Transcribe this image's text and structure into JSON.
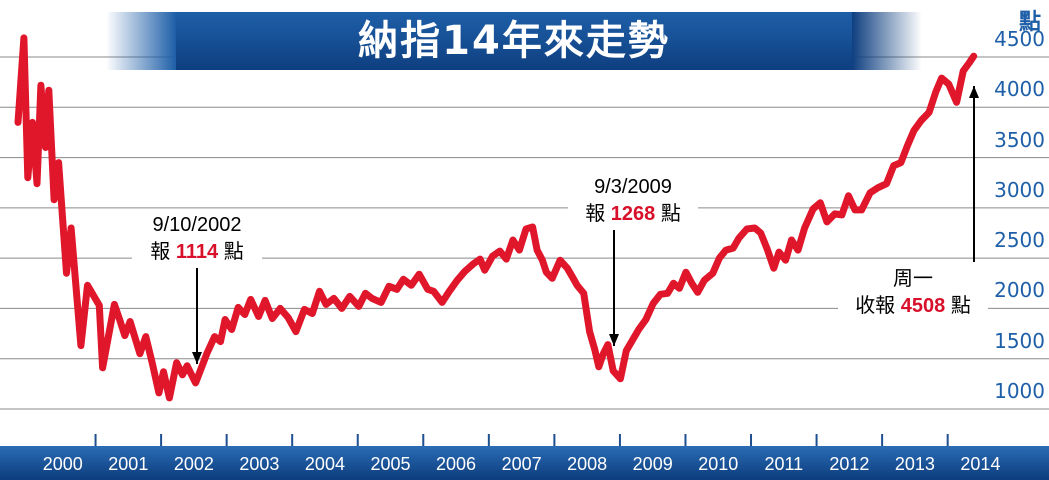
{
  "title": "納指14年來走勢",
  "chart_data": {
    "type": "line",
    "unit": "點",
    "ylim": [
      800,
      4700
    ],
    "y_ticks": [
      1000,
      1500,
      2000,
      2500,
      3000,
      3500,
      4000,
      4500
    ],
    "x_ticks": [
      "2000",
      "2001",
      "2002",
      "2003",
      "2004",
      "2005",
      "2006",
      "2007",
      "2008",
      "2009",
      "2010",
      "2011",
      "2012",
      "2013",
      "2014"
    ],
    "xlim": [
      2000.0,
      2014.6
    ],
    "grid": "horizontal",
    "color": "#e0162b",
    "series": [
      {
        "points": [
          [
            2000.0,
            3850
          ],
          [
            2000.09,
            4690
          ],
          [
            2000.15,
            3300
          ],
          [
            2000.22,
            3850
          ],
          [
            2000.29,
            3240
          ],
          [
            2000.35,
            4220
          ],
          [
            2000.42,
            3600
          ],
          [
            2000.47,
            4170
          ],
          [
            2000.55,
            3080
          ],
          [
            2000.62,
            3450
          ],
          [
            2000.74,
            2350
          ],
          [
            2000.81,
            2800
          ],
          [
            2000.96,
            1630
          ],
          [
            2001.06,
            2230
          ],
          [
            2001.24,
            2030
          ],
          [
            2001.29,
            1410
          ],
          [
            2001.47,
            2040
          ],
          [
            2001.55,
            1890
          ],
          [
            2001.63,
            1730
          ],
          [
            2001.71,
            1870
          ],
          [
            2001.86,
            1550
          ],
          [
            2001.95,
            1720
          ],
          [
            2002.05,
            1450
          ],
          [
            2002.15,
            1160
          ],
          [
            2002.22,
            1370
          ],
          [
            2002.31,
            1110
          ],
          [
            2002.42,
            1460
          ],
          [
            2002.51,
            1340
          ],
          [
            2002.58,
            1430
          ],
          [
            2002.71,
            1260
          ],
          [
            2002.88,
            1550
          ],
          [
            2003.0,
            1720
          ],
          [
            2003.09,
            1670
          ],
          [
            2003.16,
            1890
          ],
          [
            2003.26,
            1790
          ],
          [
            2003.36,
            2010
          ],
          [
            2003.46,
            1940
          ],
          [
            2003.55,
            2090
          ],
          [
            2003.67,
            1920
          ],
          [
            2003.77,
            2080
          ],
          [
            2003.88,
            1900
          ],
          [
            2004.0,
            2000
          ],
          [
            2004.12,
            1910
          ],
          [
            2004.24,
            1770
          ],
          [
            2004.37,
            1990
          ],
          [
            2004.49,
            1950
          ],
          [
            2004.6,
            2170
          ],
          [
            2004.7,
            2040
          ],
          [
            2004.82,
            2100
          ],
          [
            2004.94,
            2000
          ],
          [
            2005.06,
            2120
          ],
          [
            2005.2,
            2020
          ],
          [
            2005.3,
            2150
          ],
          [
            2005.4,
            2100
          ],
          [
            2005.54,
            2060
          ],
          [
            2005.66,
            2220
          ],
          [
            2005.78,
            2190
          ],
          [
            2005.88,
            2290
          ],
          [
            2006.0,
            2230
          ],
          [
            2006.12,
            2340
          ],
          [
            2006.25,
            2190
          ],
          [
            2006.34,
            2170
          ],
          [
            2006.47,
            2060
          ],
          [
            2006.58,
            2170
          ],
          [
            2006.7,
            2280
          ],
          [
            2006.82,
            2370
          ],
          [
            2006.94,
            2440
          ],
          [
            2007.05,
            2490
          ],
          [
            2007.12,
            2380
          ],
          [
            2007.24,
            2520
          ],
          [
            2007.35,
            2570
          ],
          [
            2007.45,
            2490
          ],
          [
            2007.55,
            2680
          ],
          [
            2007.65,
            2580
          ],
          [
            2007.75,
            2790
          ],
          [
            2007.85,
            2810
          ],
          [
            2007.92,
            2580
          ],
          [
            2008.0,
            2480
          ],
          [
            2008.06,
            2360
          ],
          [
            2008.15,
            2300
          ],
          [
            2008.27,
            2480
          ],
          [
            2008.38,
            2400
          ],
          [
            2008.47,
            2300
          ],
          [
            2008.53,
            2230
          ],
          [
            2008.63,
            2150
          ],
          [
            2008.72,
            1770
          ],
          [
            2008.8,
            1590
          ],
          [
            2008.86,
            1420
          ],
          [
            2008.93,
            1550
          ],
          [
            2009.0,
            1640
          ],
          [
            2009.08,
            1380
          ],
          [
            2009.19,
            1300
          ],
          [
            2009.28,
            1580
          ],
          [
            2009.37,
            1680
          ],
          [
            2009.47,
            1790
          ],
          [
            2009.58,
            1890
          ],
          [
            2009.69,
            2050
          ],
          [
            2009.8,
            2140
          ],
          [
            2009.91,
            2150
          ],
          [
            2010.0,
            2250
          ],
          [
            2010.09,
            2200
          ],
          [
            2010.19,
            2360
          ],
          [
            2010.28,
            2250
          ],
          [
            2010.37,
            2160
          ],
          [
            2010.47,
            2280
          ],
          [
            2010.6,
            2350
          ],
          [
            2010.7,
            2500
          ],
          [
            2010.8,
            2580
          ],
          [
            2010.91,
            2600
          ],
          [
            2011.0,
            2700
          ],
          [
            2011.12,
            2790
          ],
          [
            2011.24,
            2800
          ],
          [
            2011.33,
            2750
          ],
          [
            2011.43,
            2590
          ],
          [
            2011.53,
            2400
          ],
          [
            2011.61,
            2560
          ],
          [
            2011.71,
            2480
          ],
          [
            2011.8,
            2680
          ],
          [
            2011.9,
            2580
          ],
          [
            2012.0,
            2800
          ],
          [
            2012.13,
            2990
          ],
          [
            2012.24,
            3050
          ],
          [
            2012.34,
            2860
          ],
          [
            2012.46,
            2940
          ],
          [
            2012.57,
            2930
          ],
          [
            2012.67,
            3120
          ],
          [
            2012.77,
            2980
          ],
          [
            2012.87,
            2980
          ],
          [
            2013.0,
            3150
          ],
          [
            2013.12,
            3200
          ],
          [
            2013.25,
            3240
          ],
          [
            2013.36,
            3420
          ],
          [
            2013.47,
            3450
          ],
          [
            2013.57,
            3620
          ],
          [
            2013.67,
            3770
          ],
          [
            2013.78,
            3870
          ],
          [
            2013.9,
            3950
          ],
          [
            2014.0,
            4150
          ],
          [
            2014.09,
            4290
          ],
          [
            2014.2,
            4230
          ],
          [
            2014.32,
            4050
          ],
          [
            2014.42,
            4360
          ],
          [
            2014.51,
            4440
          ],
          [
            2014.58,
            4508
          ]
        ]
      }
    ],
    "annotations": [
      {
        "date": "9/10/2002",
        "line1": "9/10/2002",
        "prefix": "報",
        "value": "1114",
        "suffix": "點"
      },
      {
        "date": "9/3/2009",
        "line1": "9/3/2009",
        "prefix": "報",
        "value": "1268",
        "suffix": "點"
      },
      {
        "date": "周一",
        "line1": "周一",
        "prefix": "收報",
        "value": "4508",
        "suffix": "點"
      }
    ]
  }
}
